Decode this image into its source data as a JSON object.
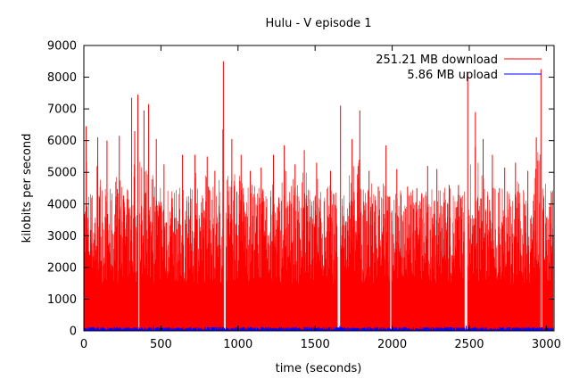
{
  "chart_data": {
    "type": "line",
    "title": "Hulu - V episode 1",
    "xlabel": "time (seconds)",
    "ylabel": "kilobits per second",
    "xlim": [
      0,
      3050
    ],
    "ylim": [
      0,
      9000
    ],
    "xticks": [
      0,
      500,
      1000,
      1500,
      2000,
      2500,
      3000
    ],
    "yticks": [
      0,
      1000,
      2000,
      3000,
      4000,
      5000,
      6000,
      7000,
      8000,
      9000
    ],
    "legend_position": "top-right",
    "grid": false,
    "series": [
      {
        "name": "251.21 MB download",
        "color": "#ff0000",
        "style": "impulses",
        "peaks": [
          [
            15,
            6450
          ],
          [
            90,
            6100
          ],
          [
            150,
            6000
          ],
          [
            230,
            6150
          ],
          [
            310,
            7350
          ],
          [
            330,
            6300
          ],
          [
            350,
            7450
          ],
          [
            390,
            6950
          ],
          [
            420,
            7150
          ],
          [
            470,
            6050
          ],
          [
            520,
            5250
          ],
          [
            640,
            5550
          ],
          [
            720,
            5550
          ],
          [
            800,
            5500
          ],
          [
            850,
            5050
          ],
          [
            905,
            8500
          ],
          [
            960,
            6050
          ],
          [
            1020,
            5550
          ],
          [
            1080,
            5050
          ],
          [
            1150,
            5150
          ],
          [
            1230,
            5550
          ],
          [
            1300,
            5850
          ],
          [
            1370,
            5250
          ],
          [
            1430,
            5700
          ],
          [
            1510,
            5300
          ],
          [
            1600,
            5050
          ],
          [
            1665,
            7100
          ],
          [
            1740,
            6050
          ],
          [
            1790,
            6950
          ],
          [
            1850,
            5050
          ],
          [
            1910,
            4550
          ],
          [
            1960,
            5850
          ],
          [
            2030,
            5100
          ],
          [
            2100,
            4550
          ],
          [
            2160,
            4500
          ],
          [
            2230,
            5200
          ],
          [
            2290,
            5100
          ],
          [
            2370,
            4600
          ],
          [
            2430,
            4600
          ],
          [
            2490,
            8150
          ],
          [
            2540,
            6900
          ],
          [
            2590,
            6050
          ],
          [
            2650,
            5550
          ],
          [
            2730,
            5150
          ],
          [
            2800,
            5300
          ],
          [
            2880,
            5050
          ],
          [
            2935,
            6100
          ],
          [
            2965,
            8250
          ],
          [
            3000,
            2500
          ],
          [
            3030,
            1800
          ]
        ],
        "typical_range": [
          1500,
          4500
        ],
        "gaps": [
          [
            350,
            360
          ],
          [
            905,
            920
          ],
          [
            1645,
            1665
          ],
          [
            1985,
            1995
          ],
          [
            2470,
            2490
          ],
          [
            2960,
            2975
          ]
        ]
      },
      {
        "name": "5.86 MB upload",
        "color": "#0000ff",
        "style": "impulses",
        "typical_range": [
          20,
          120
        ],
        "peaks": [
          [
            450,
            180
          ],
          [
            1660,
            150
          ],
          [
            2480,
            160
          ]
        ]
      }
    ]
  }
}
